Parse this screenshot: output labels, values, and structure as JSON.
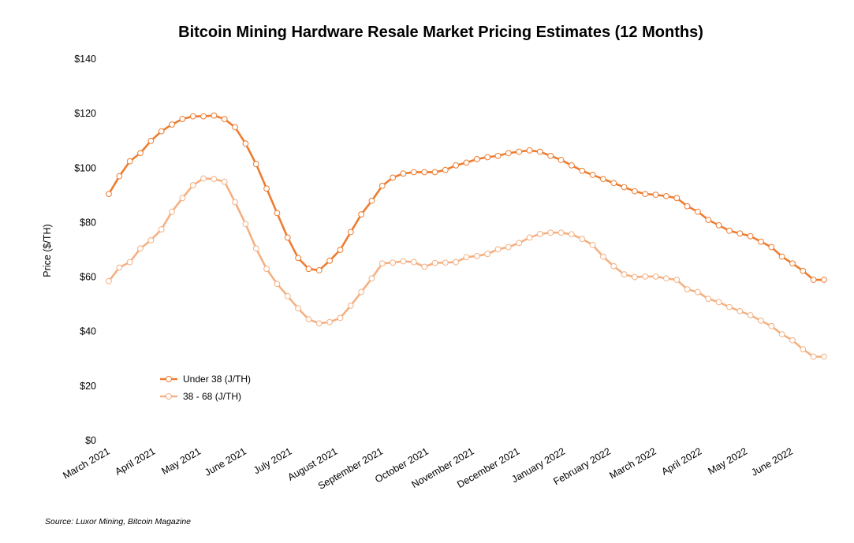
{
  "chart_data": {
    "type": "line",
    "title": "Bitcoin Mining Hardware Resale Market Pricing Estimates (12 Months)",
    "ylabel": "Price ($/TH)",
    "xlabel": "",
    "ylim": [
      0,
      140
    ],
    "yticks": [
      "$0",
      "$20",
      "$40",
      "$60",
      "$80",
      "$100",
      "$120",
      "$140"
    ],
    "xtick_labels": [
      "March 2021",
      "April 2021",
      "May 2021",
      "June 2021",
      "July 2021",
      "August 2021",
      "September 2021",
      "October 2021",
      "November 2021",
      "December 2021",
      "January 2022",
      "February 2022",
      "March 2022",
      "April 2022",
      "May 2022",
      "June 2022"
    ],
    "grid": false,
    "legend_position": "bottom-left",
    "source": "Source: Luxor Mining, Bitcoin Magazine",
    "series": [
      {
        "name": "Under 38 (J/TH)",
        "color": "#ED7D31",
        "values": [
          90.5,
          97,
          102.5,
          105.5,
          110,
          113.5,
          116,
          118,
          119,
          119,
          119.3,
          118,
          115,
          109,
          101.5,
          92.5,
          83.5,
          74.5,
          67,
          63,
          62.5,
          66,
          70,
          76.5,
          83,
          88,
          93.5,
          96.5,
          98,
          98.5,
          98.5,
          98.5,
          99.3,
          101,
          102,
          103.3,
          104,
          104.5,
          105.5,
          106,
          106.5,
          106,
          104.5,
          103,
          101,
          99,
          97.5,
          96,
          94.5,
          93,
          91.5,
          90.5,
          90.2,
          89.7,
          89,
          86,
          84,
          81,
          79,
          77,
          76,
          75,
          73,
          71,
          67.5,
          65,
          62.3,
          59,
          59
        ]
      },
      {
        "name": "38 - 68 (J/TH)",
        "color": "#F4B183",
        "values": [
          58.5,
          63.5,
          65.5,
          70.5,
          73.5,
          77.5,
          84,
          89,
          93.7,
          96.2,
          96,
          95,
          87.5,
          79.5,
          70.5,
          63,
          57.5,
          53,
          48.5,
          44.5,
          43,
          43.5,
          45,
          49.5,
          54.5,
          59.5,
          65,
          65.3,
          65.8,
          65.5,
          63.8,
          65.2,
          65.3,
          65.5,
          67.3,
          67.7,
          68.5,
          70.2,
          71,
          72.5,
          74.5,
          75.8,
          76.3,
          76.3,
          75.7,
          74,
          71.8,
          67.5,
          64,
          61,
          60,
          60.2,
          60.2,
          59.5,
          59,
          55.5,
          54.5,
          52,
          50.8,
          49,
          47.5,
          46,
          44,
          42,
          39,
          36.8,
          33.5,
          30.8,
          30.8
        ]
      }
    ]
  }
}
